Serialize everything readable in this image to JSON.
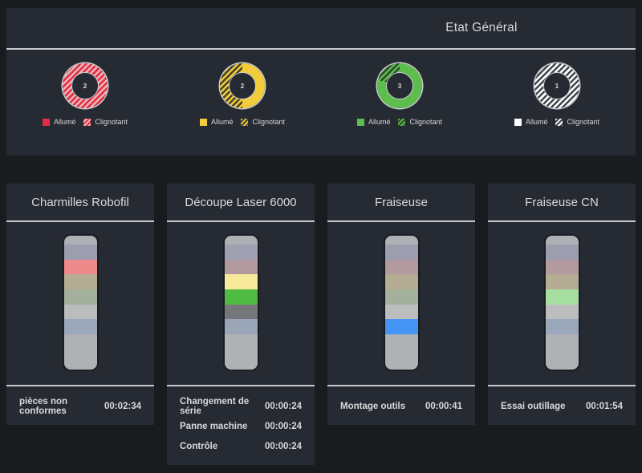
{
  "header": {
    "title": "Etat Général",
    "legend": {
      "on": "Allumé",
      "blink": "Clignotant"
    },
    "donuts": [
      {
        "id": "red",
        "count": "2",
        "color": "#e02f44",
        "hatch_gap": "#eeb6ba",
        "solid_deg": 0
      },
      {
        "id": "yellow",
        "count": "2",
        "color": "#f2cc3a",
        "hatch_gap": "#45422c",
        "solid_deg": 180
      },
      {
        "id": "green",
        "count": "3",
        "color": "#5cbf4d",
        "hatch_gap": "#2c4a2c",
        "solid_deg": 285
      },
      {
        "id": "white",
        "count": "1",
        "color": "#ffffff",
        "hatch_gap": "#42454b",
        "solid_deg": 0
      }
    ]
  },
  "tower_colors": {
    "cap": "#aeb0b4",
    "base": "#afb1b4"
  },
  "machines": [
    {
      "title": "Charmilles Robofil",
      "slots": [
        "#9c9eb0",
        "#ef8a8a",
        "#b4ac93",
        "#a3b09b",
        "#babcbe",
        "#9ba7bb"
      ],
      "statuses": [
        {
          "label": "pièces non conformes",
          "time": "00:02:34"
        }
      ]
    },
    {
      "title": "Découpe Laser 6000",
      "slots": [
        "#9fa1b2",
        "#b29a9e",
        "#f7ea9b",
        "#50bb42",
        "#76777a",
        "#9aa5b8"
      ],
      "statuses": [
        {
          "label": "Changement de série",
          "time": "00:00:24"
        },
        {
          "label": "Panne machine",
          "time": "00:00:24"
        },
        {
          "label": "Contrôle",
          "time": "00:00:24"
        }
      ]
    },
    {
      "title": "Fraiseuse",
      "slots": [
        "#9c9eb0",
        "#b29a9e",
        "#b4ac93",
        "#a3b09b",
        "#bcbdbf",
        "#4495f5"
      ],
      "statuses": [
        {
          "label": "Montage outils",
          "time": "00:00:41"
        }
      ]
    },
    {
      "title": "Fraiseuse CN",
      "slots": [
        "#9c9eb0",
        "#b29a9e",
        "#b4ac93",
        "#a7dfa0",
        "#bcbdbf",
        "#9ba7bb"
      ],
      "statuses": [
        {
          "label": "Essai outillage",
          "time": "00:01:54"
        }
      ]
    }
  ],
  "colors": {
    "page_bg": "#1a1b1e",
    "panel_bg": "#262a33",
    "text": "#d8d9da",
    "rule": "#c9cacc"
  }
}
